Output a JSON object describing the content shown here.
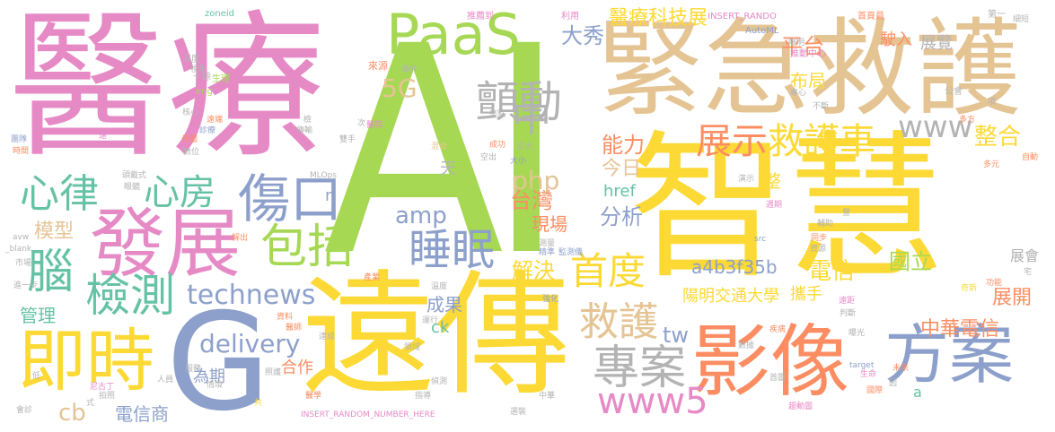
{
  "title": "",
  "colors": {
    "pink": "#E68AC6",
    "yellow": "#FCD934",
    "green": "#A6D854",
    "tan": "#E5C494",
    "blue": "#8DA0CB",
    "orange": "#FC8D62",
    "gray": "#B3B3B3",
    "teal": "#66C2A5"
  },
  "words": [
    {
      "text": "AI",
      "color": "#A6D854"
    },
    {
      "text": "醫療",
      "color": "#E68AC6"
    },
    {
      "text": "智慧",
      "color": "#FCD934"
    },
    {
      "text": "緊急救護",
      "color": "#E5C494"
    },
    {
      "text": "遠傳",
      "color": "#FCD934"
    },
    {
      "text": "G",
      "color": "#8DA0CB"
    },
    {
      "text": "影像",
      "color": "#FC8D62"
    },
    {
      "text": "發展",
      "color": "#E68AC6"
    },
    {
      "text": "即時",
      "color": "#FCD934"
    },
    {
      "text": "方案",
      "color": "#8DA0CB"
    },
    {
      "text": "PaaS",
      "color": "#A6D854"
    },
    {
      "text": "傷口",
      "color": "#8DA0CB"
    },
    {
      "text": "專案",
      "color": "#B3B3B3"
    },
    {
      "text": "包括",
      "color": "#A6D854"
    },
    {
      "text": "睡眠",
      "color": "#8DA0CB"
    },
    {
      "text": "心律",
      "color": "#66C2A5"
    },
    {
      "text": "心房",
      "color": "#66C2A5"
    },
    {
      "text": "腦",
      "color": "#66C2A5"
    },
    {
      "text": "檢測",
      "color": "#66C2A5"
    },
    {
      "text": "顫動",
      "color": "#B3B3B3"
    },
    {
      "text": "中",
      "color": "#B3B3B3"
    },
    {
      "text": "展示",
      "color": "#FC8D62"
    },
    {
      "text": "救護車",
      "color": "#FCD934"
    },
    {
      "text": "救護",
      "color": "#E5C494"
    },
    {
      "text": "www5",
      "color": "#E68AC6"
    },
    {
      "text": "首度",
      "color": "#FCD934"
    },
    {
      "text": "www",
      "color": "#B3B3B3"
    },
    {
      "text": "technews",
      "color": "#8DA0CB"
    },
    {
      "text": "delivery",
      "color": "#8DA0CB"
    },
    {
      "text": "醫療科技展",
      "color": "#FCD934"
    },
    {
      "text": "平台",
      "color": "#FC8D62"
    },
    {
      "text": "整合",
      "color": "#FCD934"
    },
    {
      "text": "電信",
      "color": "#FCD934"
    },
    {
      "text": "中華電信",
      "color": "#FC8D62"
    },
    {
      "text": "國立",
      "color": "#A6D854"
    },
    {
      "text": "展開",
      "color": "#FC8D62"
    },
    {
      "text": "a4b3f35b",
      "color": "#8DA0CB"
    },
    {
      "text": "陽明交通大學",
      "color": "#FCD934"
    },
    {
      "text": "大秀",
      "color": "#8DA0CB"
    },
    {
      "text": "5G",
      "color": "#E5C494"
    },
    {
      "text": "能力",
      "color": "#FC8D62"
    },
    {
      "text": "今日",
      "color": "#E5C494"
    },
    {
      "text": "php",
      "color": "#E5C494"
    },
    {
      "text": "台灣",
      "color": "#FC8D62"
    },
    {
      "text": "分析",
      "color": "#8DA0CB"
    },
    {
      "text": "amp",
      "color": "#8DA0CB"
    },
    {
      "text": "解決",
      "color": "#FCD934"
    },
    {
      "text": "現場",
      "color": "#FC8D62"
    },
    {
      "text": "href",
      "color": "#66C2A5"
    },
    {
      "text": "模型",
      "color": "#E5C494"
    },
    {
      "text": "管理",
      "color": "#66C2A5"
    },
    {
      "text": "成果",
      "color": "#8DA0CB"
    },
    {
      "text": "tw",
      "color": "#8DA0CB"
    },
    {
      "text": "cb",
      "color": "#E5C494"
    },
    {
      "text": "電信商",
      "color": "#8DA0CB"
    },
    {
      "text": "為期",
      "color": "#8DA0CB"
    },
    {
      "text": "合作",
      "color": "#FC8D62"
    },
    {
      "text": "ck",
      "color": "#66C2A5"
    },
    {
      "text": "布局",
      "color": "#FCD934"
    },
    {
      "text": "展覽",
      "color": "#B3B3B3"
    },
    {
      "text": "駛入",
      "color": "#FC8D62"
    },
    {
      "text": "整",
      "color": "#FCD934"
    },
    {
      "text": "攜手",
      "color": "#FCD934"
    },
    {
      "text": "展會",
      "color": "#B3B3B3"
    },
    {
      "text": "天",
      "color": "#B3B3B3"
    },
    {
      "text": "n",
      "color": "#8DA0CB"
    },
    {
      "text": "a",
      "color": "#66C2A5"
    },
    {
      "text": "zoneid",
      "color": "#66C2A5"
    },
    {
      "text": "推薦到",
      "color": "#E68AC6"
    },
    {
      "text": "利用",
      "color": "#E68AC6"
    },
    {
      "text": "INSERT_RANDO",
      "color": "#E68AC6"
    },
    {
      "text": "首頁員",
      "color": "#FC8D62"
    },
    {
      "text": "第一",
      "color": "#B3B3B3"
    },
    {
      "text": "細短",
      "color": "#B3B3B3"
    },
    {
      "text": "AutoML",
      "color": "#8DA0CB"
    },
    {
      "text": "陽明",
      "color": "#B3B3B3"
    },
    {
      "text": "推動中心",
      "color": "#E68AC6"
    },
    {
      "text": "來源",
      "color": "#FC8D62"
    },
    {
      "text": "海外",
      "color": "#B3B3B3"
    },
    {
      "text": "公會",
      "color": "#B3B3B3"
    },
    {
      "text": "十餘",
      "color": "#B3B3B3"
    },
    {
      "text": "生理",
      "color": "#A6D854"
    },
    {
      "text": "深度",
      "color": "#B3B3B3"
    },
    {
      "text": "視角",
      "color": "#B3B3B3"
    },
    {
      "text": "img",
      "color": "#A6D854"
    },
    {
      "text": "團隊",
      "color": "#8DA0CB"
    },
    {
      "text": "核心",
      "color": "#B3B3B3"
    },
    {
      "text": "遠端",
      "color": "#FC8D62"
    },
    {
      "text": "診療",
      "color": "#8DA0CB"
    },
    {
      "text": "傳輸",
      "color": "#B3B3B3"
    },
    {
      "text": "醫院",
      "color": "#E68AC6"
    },
    {
      "text": "亮點",
      "color": "#B3B3B3"
    },
    {
      "text": "成功",
      "color": "#FC8D62"
    },
    {
      "text": "交大",
      "color": "#B3B3B3"
    },
    {
      "text": "混合",
      "color": "#E5C494"
    },
    {
      "text": "空出",
      "color": "#B3B3B3"
    },
    {
      "text": "大小",
      "color": "#8DA0CB"
    },
    {
      "text": "雙手",
      "color": "#B3B3B3"
    },
    {
      "text": "頭戴式",
      "color": "#B3B3B3"
    },
    {
      "text": "眼鏡",
      "color": "#B3B3B3"
    },
    {
      "text": "MLOps",
      "color": "#B3B3B3"
    },
    {
      "text": "多方",
      "color": "#FC8D62"
    },
    {
      "text": "多元",
      "color": "#FC8D62"
    },
    {
      "text": "演示",
      "color": "#B3B3B3"
    },
    {
      "text": "週期",
      "color": "#E68AC6"
    },
    {
      "text": "輔助",
      "color": "#B3B3B3"
    },
    {
      "text": "分享",
      "color": "#FCD934"
    },
    {
      "text": "同步",
      "color": "#FC8D62"
    },
    {
      "text": "資源",
      "color": "#B3B3B3"
    },
    {
      "text": "src",
      "color": "#8DA0CB"
    },
    {
      "text": "解出",
      "color": "#FC8D62"
    },
    {
      "text": "測量",
      "color": "#B3B3B3"
    },
    {
      "text": "監測儀",
      "color": "#8DA0CB"
    },
    {
      "text": "精準",
      "color": "#8DA0CB"
    },
    {
      "text": "產業",
      "color": "#FC8D62"
    },
    {
      "text": "溫度",
      "color": "#B3B3B3"
    },
    {
      "text": "強化",
      "color": "#8DA0CB"
    },
    {
      "text": "運行",
      "color": "#B3B3B3"
    },
    {
      "text": "資料",
      "color": "#FC8D62"
    },
    {
      "text": "醫師",
      "color": "#FC8D62"
    },
    {
      "text": "達成",
      "color": "#B3B3B3"
    },
    {
      "text": "領域",
      "color": "#B3B3B3"
    },
    {
      "text": "偵測",
      "color": "#B3B3B3"
    },
    {
      "text": "指導",
      "color": "#B3B3B3"
    },
    {
      "text": "醫學",
      "color": "#FC8D62"
    },
    {
      "text": "照護",
      "color": "#B3B3B3"
    },
    {
      "text": "人員",
      "color": "#B3B3B3"
    },
    {
      "text": "服務",
      "color": "#B3B3B3"
    },
    {
      "text": "情境",
      "color": "#B3B3B3"
    },
    {
      "text": "拍照",
      "color": "#B3B3B3"
    },
    {
      "text": "尼古丁",
      "color": "#E68AC6"
    },
    {
      "text": "會診",
      "color": "#B3B3B3"
    },
    {
      "text": "進一步",
      "color": "#B3B3B3"
    },
    {
      "text": "市場",
      "color": "#B3B3B3"
    },
    {
      "text": "_blank",
      "color": "#B3B3B3"
    },
    {
      "text": "avw",
      "color": "#B3B3B3"
    },
    {
      "text": "疾病",
      "color": "#FC8D62"
    },
    {
      "text": "數據",
      "color": "#B3B3B3"
    },
    {
      "text": "曝光",
      "color": "#B3B3B3"
    },
    {
      "text": "判斷",
      "color": "#B3B3B3"
    },
    {
      "text": "遠距",
      "color": "#E68AC6"
    },
    {
      "text": "生命",
      "color": "#E68AC6"
    },
    {
      "text": "首圖",
      "color": "#B3B3B3"
    },
    {
      "text": "國際",
      "color": "#FC8D62"
    },
    {
      "text": "趨動圖",
      "color": "#E68AC6"
    },
    {
      "text": "target",
      "color": "#8DA0CB"
    },
    {
      "text": "未來",
      "color": "#FC8D62"
    },
    {
      "text": "功能",
      "color": "#FC8D62"
    },
    {
      "text": "奇新",
      "color": "#FCD934"
    },
    {
      "text": "中華",
      "color": "#B3B3B3"
    },
    {
      "text": "選裝",
      "color": "#B3B3B3"
    },
    {
      "text": "INSERT_RANDOM_NUMBER_HERE",
      "color": "#E68AC6"
    },
    {
      "text": "宅",
      "color": "#B3B3B3"
    },
    {
      "text": "自動",
      "color": "#FC8D62"
    },
    {
      "text": "骨圖",
      "color": "#FC8D62"
    },
    {
      "text": "數位",
      "color": "#B3B3B3"
    },
    {
      "text": "時間",
      "color": "#FC8D62"
    },
    {
      "text": "不斷",
      "color": "#B3B3B3"
    },
    {
      "text": "專心",
      "color": "#B3B3B3"
    },
    {
      "text": "項",
      "color": "#B3B3B3"
    },
    {
      "text": "遠",
      "color": "#E68AC6"
    },
    {
      "text": "次",
      "color": "#B3B3B3"
    },
    {
      "text": "檢",
      "color": "#B3B3B3"
    },
    {
      "text": "式",
      "color": "#B3B3B3"
    },
    {
      "text": "共",
      "color": "#FCD934"
    },
    {
      "text": "因",
      "color": "#B3B3B3"
    },
    {
      "text": "低",
      "color": "#B3B3B3"
    },
    {
      "text": "豐",
      "color": "#B3B3B3"
    }
  ]
}
